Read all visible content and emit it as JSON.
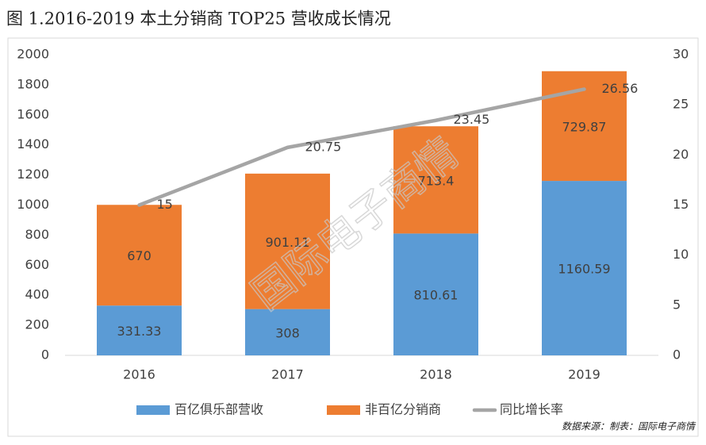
{
  "chart_data": {
    "type": "bar",
    "stacked": true,
    "title": "图 1.2016-2019 本土分销商 TOP25 营收成长情况",
    "categories": [
      "2016",
      "2017",
      "2018",
      "2019"
    ],
    "series": [
      {
        "name": "百亿俱乐部营收",
        "type": "bar",
        "color": "#5b9bd5",
        "values": [
          331.33,
          308,
          810.61,
          1160.59
        ]
      },
      {
        "name": "非百亿分销商",
        "type": "bar",
        "color": "#ed7d31",
        "values": [
          670,
          901.11,
          713.4,
          729.87
        ]
      },
      {
        "name": "同比增长率",
        "type": "line",
        "axis": "y2",
        "color": "#a5a5a5",
        "values": [
          15,
          20.75,
          23.45,
          26.56
        ]
      }
    ],
    "ylim": [
      0,
      2000
    ],
    "yticks": [
      0,
      200,
      400,
      600,
      800,
      1000,
      1200,
      1400,
      1600,
      1800,
      2000
    ],
    "y2lim": [
      0,
      30
    ],
    "y2ticks": [
      0,
      5,
      10,
      15,
      20,
      25,
      30
    ],
    "grid": false,
    "legend": "bottom",
    "source": "数据来源：制表：国际电子商情",
    "watermark": "国际电子商情"
  }
}
